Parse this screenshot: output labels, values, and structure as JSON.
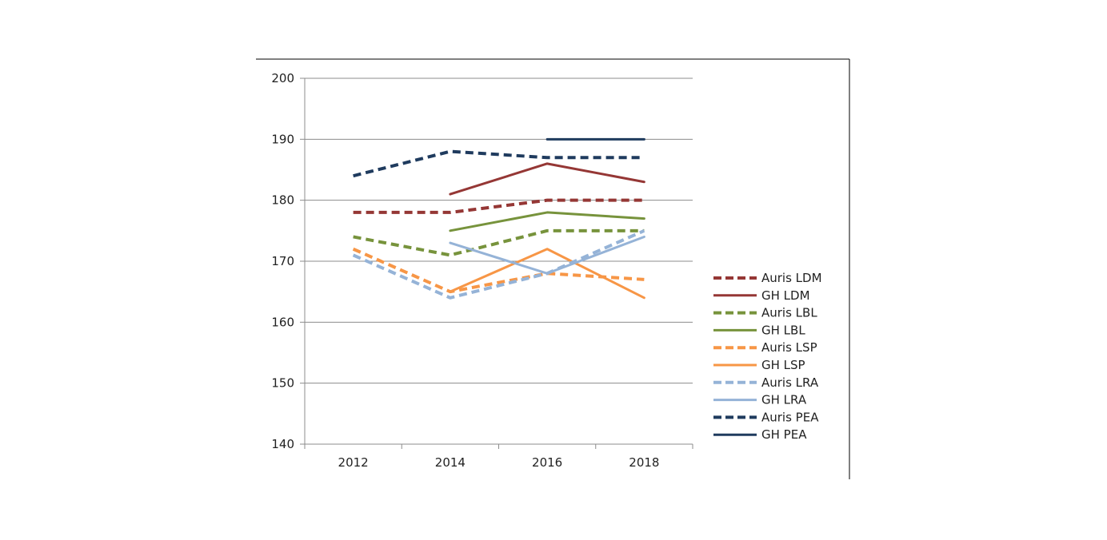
{
  "chart_data": {
    "type": "line",
    "title": "",
    "xlabel": "",
    "ylabel": "",
    "x": [
      "2012",
      "2014",
      "2016",
      "2018"
    ],
    "ylim": [
      140,
      200
    ],
    "yticks": [
      140,
      150,
      160,
      170,
      180,
      190,
      200
    ],
    "grid": true,
    "legend_position": "right",
    "series": [
      {
        "name": "Auris LDM",
        "values": [
          178,
          178,
          180,
          180
        ],
        "color": "#953735",
        "dashed": true
      },
      {
        "name": "GH LDM",
        "values": [
          null,
          181,
          186,
          183
        ],
        "color": "#953735",
        "dashed": false
      },
      {
        "name": "Auris LBL",
        "values": [
          174,
          171,
          175,
          175
        ],
        "color": "#77933C",
        "dashed": true
      },
      {
        "name": "GH LBL",
        "values": [
          null,
          175,
          178,
          177
        ],
        "color": "#77933C",
        "dashed": false
      },
      {
        "name": "Auris LSP",
        "values": [
          172,
          165,
          168,
          167
        ],
        "color": "#F79646",
        "dashed": true
      },
      {
        "name": "GH LSP",
        "values": [
          null,
          165,
          172,
          164
        ],
        "color": "#F79646",
        "dashed": false
      },
      {
        "name": "Auris LRA",
        "values": [
          171,
          164,
          168,
          175
        ],
        "color": "#95B3D7",
        "dashed": true
      },
      {
        "name": "GH LRA",
        "values": [
          null,
          173,
          168,
          174
        ],
        "color": "#95B3D7",
        "dashed": false
      },
      {
        "name": "Auris PEA",
        "values": [
          184,
          188,
          187,
          187
        ],
        "color": "#1F3B5E",
        "dashed": true
      },
      {
        "name": "GH PEA",
        "values": [
          null,
          null,
          190,
          190
        ],
        "color": "#1F3B5E",
        "dashed": false
      }
    ]
  }
}
